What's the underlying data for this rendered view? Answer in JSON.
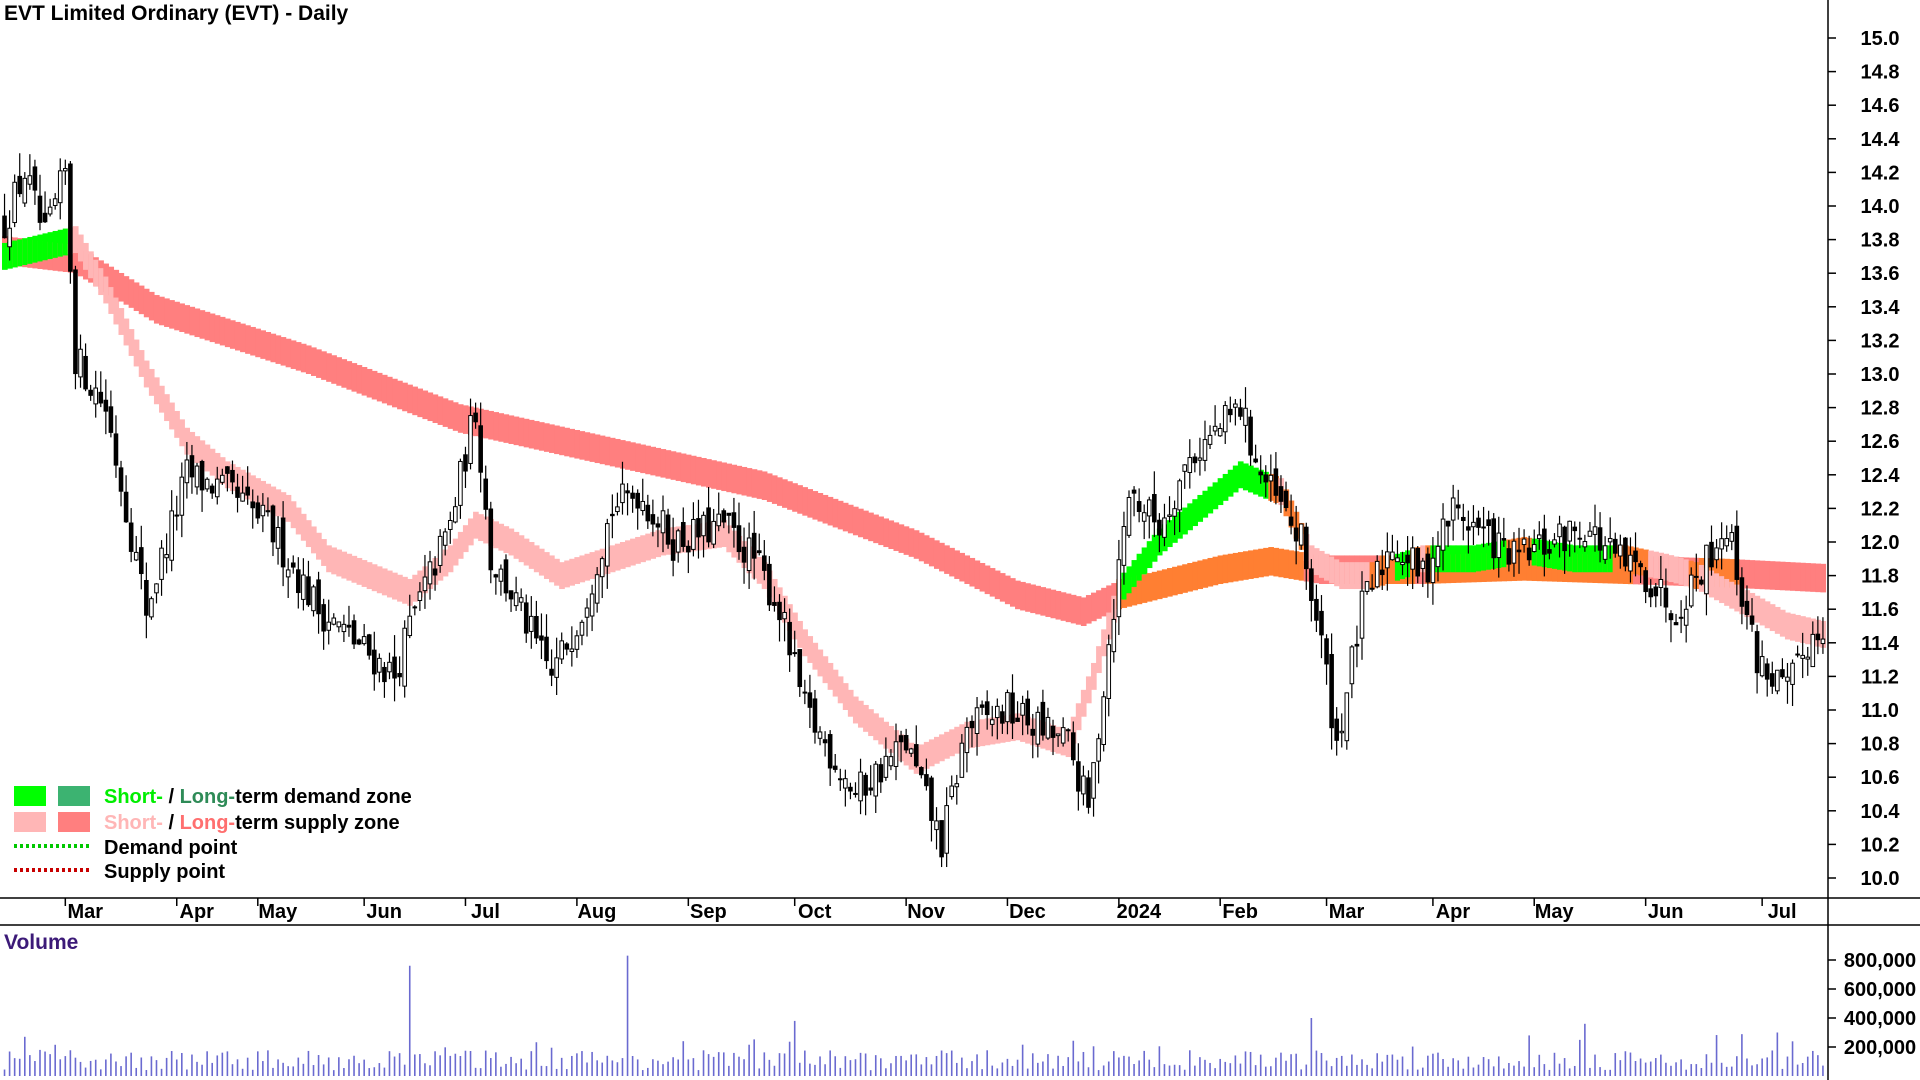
{
  "chart_data": {
    "type": "candlestick",
    "title": "EVT Limited Ordinary (EVT) - Daily",
    "y_ticks": [
      "15.0",
      "14.8",
      "14.6",
      "14.4",
      "14.2",
      "14.0",
      "13.8",
      "13.6",
      "13.4",
      "13.2",
      "13.0",
      "12.8",
      "12.6",
      "12.4",
      "12.2",
      "12.0",
      "11.8",
      "11.6",
      "11.4",
      "11.2",
      "11.0",
      "10.8",
      "10.6",
      "10.4",
      "10.2",
      "10.0"
    ],
    "ylim": [
      9.9,
      15.2
    ],
    "months": [
      "Mar",
      "Apr",
      "May",
      "Jun",
      "Jul",
      "Aug",
      "Sep",
      "Oct",
      "Nov",
      "Dec",
      "2024",
      "Feb",
      "Mar",
      "Apr",
      "May",
      "Jun",
      "Jul"
    ],
    "month_index": [
      12,
      34,
      50,
      71,
      91,
      113,
      135,
      156,
      178,
      198,
      220,
      240,
      261,
      282,
      302,
      324,
      347
    ],
    "n_days": 360,
    "price_path": [
      [
        0,
        13.9
      ],
      [
        4,
        14.2
      ],
      [
        8,
        13.8
      ],
      [
        12,
        14.2
      ],
      [
        14,
        13.1
      ],
      [
        20,
        12.8
      ],
      [
        28,
        11.6
      ],
      [
        36,
        12.4
      ],
      [
        44,
        12.3
      ],
      [
        52,
        12.1
      ],
      [
        62,
        11.6
      ],
      [
        77,
        11.2
      ],
      [
        80,
        11.5
      ],
      [
        88,
        12.1
      ],
      [
        93,
        12.8
      ],
      [
        96,
        11.9
      ],
      [
        100,
        11.7
      ],
      [
        108,
        11.2
      ],
      [
        114,
        11.6
      ],
      [
        120,
        12.2
      ],
      [
        125,
        12.3
      ],
      [
        132,
        12.0
      ],
      [
        142,
        12.1
      ],
      [
        148,
        11.9
      ],
      [
        153,
        11.6
      ],
      [
        158,
        11.0
      ],
      [
        168,
        10.5
      ],
      [
        178,
        10.8
      ],
      [
        185,
        10.2
      ],
      [
        190,
        10.9
      ],
      [
        198,
        11.0
      ],
      [
        210,
        10.8
      ],
      [
        214,
        10.4
      ],
      [
        218,
        11.4
      ],
      [
        222,
        12.3
      ],
      [
        228,
        12.1
      ],
      [
        234,
        12.5
      ],
      [
        244,
        12.8
      ],
      [
        248,
        12.4
      ],
      [
        256,
        12.0
      ],
      [
        260,
        11.4
      ],
      [
        263,
        10.8
      ],
      [
        268,
        11.6
      ],
      [
        274,
        12.0
      ],
      [
        280,
        11.8
      ],
      [
        286,
        12.2
      ],
      [
        290,
        12.1
      ],
      [
        298,
        11.9
      ],
      [
        306,
        12.0
      ],
      [
        312,
        12.1
      ],
      [
        318,
        11.9
      ],
      [
        324,
        11.8
      ],
      [
        330,
        11.6
      ],
      [
        334,
        11.8
      ],
      [
        340,
        12.1
      ],
      [
        346,
        11.3
      ],
      [
        352,
        11.1
      ],
      [
        356,
        11.4
      ],
      [
        359,
        11.5
      ]
    ],
    "short_term_zone_path": [
      [
        0,
        13.7
      ],
      [
        14,
        13.8
      ],
      [
        20,
        13.5
      ],
      [
        28,
        13.0
      ],
      [
        36,
        12.6
      ],
      [
        44,
        12.4
      ],
      [
        56,
        12.2
      ],
      [
        64,
        11.9
      ],
      [
        80,
        11.7
      ],
      [
        88,
        11.9
      ],
      [
        93,
        12.1
      ],
      [
        100,
        12.0
      ],
      [
        110,
        11.8
      ],
      [
        120,
        11.9
      ],
      [
        130,
        12.0
      ],
      [
        142,
        12.05
      ],
      [
        150,
        11.8
      ],
      [
        158,
        11.4
      ],
      [
        168,
        11.0
      ],
      [
        180,
        10.7
      ],
      [
        190,
        10.85
      ],
      [
        200,
        10.9
      ],
      [
        210,
        10.8
      ],
      [
        215,
        11.2
      ],
      [
        220,
        11.7
      ],
      [
        228,
        12.0
      ],
      [
        236,
        12.2
      ],
      [
        244,
        12.4
      ],
      [
        252,
        12.3
      ],
      [
        258,
        11.9
      ],
      [
        264,
        11.8
      ],
      [
        270,
        11.8
      ],
      [
        280,
        11.9
      ],
      [
        290,
        11.9
      ],
      [
        300,
        11.95
      ],
      [
        310,
        11.9
      ],
      [
        320,
        11.9
      ],
      [
        328,
        11.85
      ],
      [
        334,
        11.8
      ],
      [
        340,
        11.7
      ],
      [
        346,
        11.6
      ],
      [
        352,
        11.5
      ],
      [
        359,
        11.45
      ]
    ],
    "long_term_zone_path": [
      [
        0,
        13.75
      ],
      [
        14,
        13.7
      ],
      [
        30,
        13.4
      ],
      [
        60,
        13.1
      ],
      [
        90,
        12.75
      ],
      [
        120,
        12.55
      ],
      [
        150,
        12.35
      ],
      [
        180,
        12.0
      ],
      [
        200,
        11.7
      ],
      [
        213,
        11.6
      ],
      [
        220,
        11.7
      ],
      [
        240,
        11.85
      ],
      [
        250,
        11.9
      ],
      [
        260,
        11.85
      ],
      [
        280,
        11.85
      ],
      [
        300,
        11.87
      ],
      [
        320,
        11.85
      ],
      [
        340,
        11.83
      ],
      [
        359,
        11.8
      ]
    ],
    "volume_ticks": [
      "800,000",
      "600,000",
      "400,000",
      "200,000"
    ],
    "volume_ylim": [
      0,
      900000
    ],
    "volume_spikes": [
      [
        80,
        760000
      ],
      [
        123,
        830000
      ],
      [
        156,
        380000
      ],
      [
        258,
        400000
      ],
      [
        312,
        360000
      ],
      [
        350,
        300000
      ]
    ],
    "colors": {
      "up_candle": "#000000",
      "down_candle": "#000000",
      "short_demand": "#00ff00",
      "long_demand": "#3cb371",
      "short_supply": "#ffb6b6",
      "long_supply": "#ff7f7f",
      "overlap": "#ff7f32",
      "volume_bar": "#6a6ad0"
    }
  },
  "volume_label": "Volume",
  "legend": [
    {
      "short_text": "Short-",
      "sep": " / ",
      "long_text": "Long-",
      "rest": "term demand zone",
      "short_color": "#00ff00",
      "long_color": "#3cb371"
    },
    {
      "short_text": "Short-",
      "sep": " / ",
      "long_text": "Long-",
      "rest": "term supply zone",
      "short_color": "#ffb6b6",
      "long_color": "#ff7f7f"
    },
    {
      "text": "Demand point",
      "color": "#00c800"
    },
    {
      "text": "Supply point",
      "color": "#c80000"
    }
  ]
}
